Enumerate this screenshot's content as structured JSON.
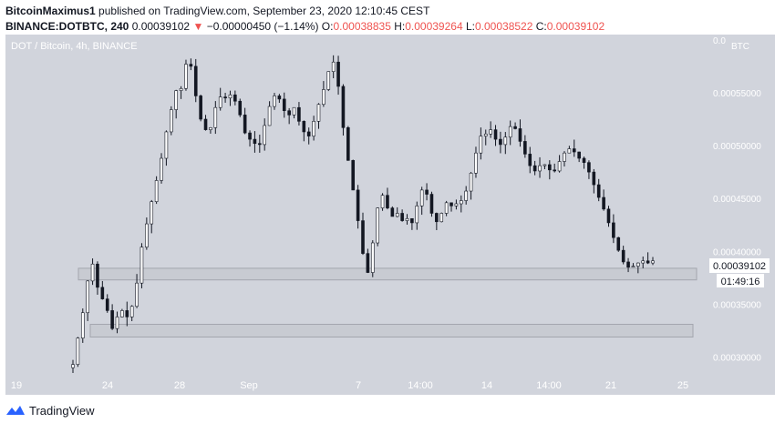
{
  "header": {
    "author": "BitcoinMaximus1",
    "published": "published on TradingView.com, September 23, 2020 12:10:45 CEST",
    "symbol": "BINANCE:DOTBTC, 240",
    "last": "0.00039102",
    "change": "−0.00000450 (−1.14%)",
    "o_label": "O:",
    "o_value": "0.00038835",
    "h_label": "H:",
    "h_value": "0.00039264",
    "l_label": "L:",
    "l_value": "0.00038522",
    "c_label": "C:",
    "c_value": "0.00039102"
  },
  "footer": {
    "brand": "TradingView"
  },
  "colors": {
    "plot_bg": "#d1d4dc",
    "candle": "#131722",
    "zone_fill": "#c8cbd2",
    "zone_border": "#a3a6ae",
    "red": "#ef5350"
  },
  "chart_data": {
    "type": "candlestick",
    "title": "DOT / Bitcoin, 4h, BINANCE",
    "currency_label": "BTC",
    "ylim": [
      0.000285,
      0.000605
    ],
    "y_ticks": [
      {
        "value": 0.0006,
        "label": "0.0"
      },
      {
        "value": 0.00055,
        "label": "0.00055000"
      },
      {
        "value": 0.0005,
        "label": "0.00050000"
      },
      {
        "value": 0.00045,
        "label": "0.00045000"
      },
      {
        "value": 0.0004,
        "label": "0.00040000"
      },
      {
        "value": 0.00035,
        "label": "0.00035000"
      },
      {
        "value": 0.0003,
        "label": "0.00030000"
      }
    ],
    "x_ticks": [
      "19",
      "24",
      "28",
      "Sep",
      "7",
      "14:00",
      "14",
      "14:00",
      "21",
      "25"
    ],
    "last_price_label": "0.00039102",
    "countdown_label": "01:49:16",
    "last_price": 0.00039102,
    "zones": [
      {
        "low": 0.000373,
        "high": 0.000384
      },
      {
        "low": 0.000319,
        "high": 0.000331
      }
    ],
    "grid": false,
    "closes": [
      0.000293,
      0.000318,
      0.000342,
      0.000372,
      0.000388,
      0.000366,
      0.000355,
      0.000344,
      0.000327,
      0.000338,
      0.000344,
      0.000338,
      0.000348,
      0.00037,
      0.000404,
      0.000426,
      0.000447,
      0.000467,
      0.000488,
      0.000513,
      0.000534,
      0.000552,
      0.000554,
      0.000577,
      0.000575,
      0.000547,
      0.000525,
      0.000515,
      0.000517,
      0.000536,
      0.000546,
      0.000545,
      0.000548,
      0.000542,
      0.000529,
      0.000512,
      0.000506,
      0.000502,
      0.000501,
      0.000519,
      0.000537,
      0.000547,
      0.000544,
      0.000533,
      0.000529,
      0.000536,
      0.000523,
      0.000513,
      0.000509,
      0.000523,
      0.000539,
      0.000553,
      0.00057,
      0.000579,
      0.000556,
      0.000517,
      0.000486,
      0.000458,
      0.000429,
      0.000398,
      0.00038,
      0.000408,
      0.000441,
      0.000453,
      0.000441,
      0.000433,
      0.000436,
      0.000429,
      0.000431,
      0.000427,
      0.000443,
      0.000458,
      0.000454,
      0.000436,
      0.000428,
      0.000436,
      0.000446,
      0.000443,
      0.000445,
      0.000448,
      0.000457,
      0.000474,
      0.000493,
      0.000509,
      0.000511,
      0.000515,
      0.000506,
      0.000501,
      0.000508,
      0.000518,
      0.000516,
      0.000504,
      0.000492,
      0.000481,
      0.000476,
      0.000481,
      0.000482,
      0.000477,
      0.000476,
      0.000485,
      0.000493,
      0.000497,
      0.000494,
      0.000488,
      0.000484,
      0.000475,
      0.000463,
      0.000451,
      0.00044,
      0.000427,
      0.000413,
      0.000401,
      0.00039,
      0.000385,
      0.000386,
      0.000389,
      0.000391,
      0.000389,
      0.000391
    ]
  }
}
